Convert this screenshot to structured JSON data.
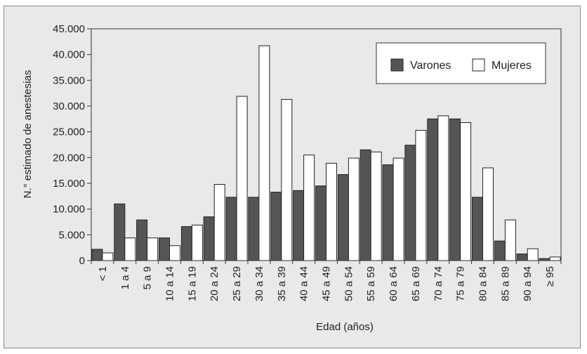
{
  "chart_data": {
    "type": "bar",
    "title": "",
    "xlabel": "Edad (años)",
    "ylabel": "N.° estimado de anestesias",
    "ylim": [
      0,
      45000
    ],
    "yticks": [
      0,
      5000,
      10000,
      15000,
      20000,
      25000,
      30000,
      35000,
      40000,
      45000
    ],
    "ytick_labels": [
      "0",
      "5.000",
      "10.000",
      "15.000",
      "20.000",
      "25.000",
      "30.000",
      "35.000",
      "40.000",
      "45.000"
    ],
    "grid": false,
    "legend": "top-right",
    "categories": [
      "< 1",
      "1 a 4",
      "5 a 9",
      "10 a 14",
      "15 a 19",
      "20 a 24",
      "25 a 29",
      "30 a 34",
      "35 a 39",
      "40 a 44",
      "45 a 49",
      "50 a 54",
      "55 a 59",
      "60 a 64",
      "65 a 69",
      "70 a 74",
      "75 a 79",
      "80 a 84",
      "85 a 89",
      "90 a 94",
      "≥ 95"
    ],
    "series": [
      {
        "name": "Varones",
        "color": "#555555",
        "values": [
          2200,
          11000,
          7900,
          4400,
          6600,
          8500,
          12300,
          12300,
          13300,
          13600,
          14500,
          16700,
          21500,
          18600,
          22400,
          27500,
          27500,
          12300,
          3800,
          1300,
          400
        ]
      },
      {
        "name": "Mujeres",
        "color": "#ffffff",
        "values": [
          1500,
          4400,
          4400,
          2900,
          6900,
          14800,
          31900,
          41700,
          31300,
          20500,
          18900,
          19900,
          21100,
          19900,
          25300,
          28100,
          26800,
          18000,
          7900,
          2300,
          700
        ]
      }
    ]
  }
}
